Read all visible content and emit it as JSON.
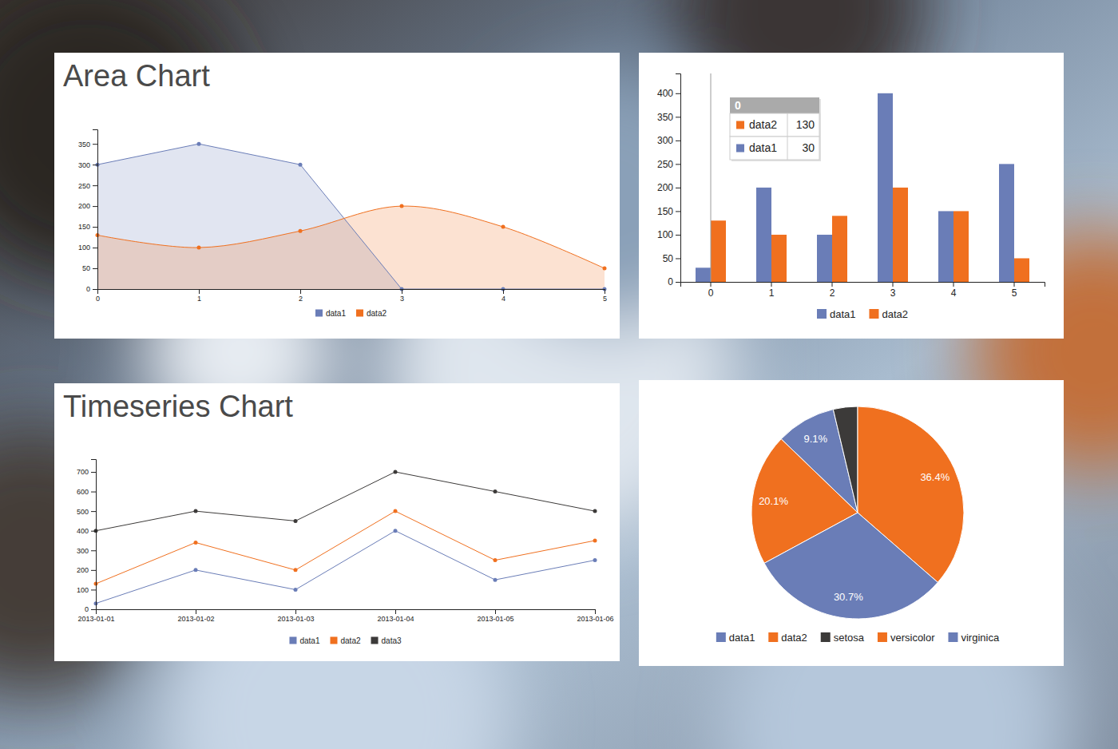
{
  "chart_data": [
    {
      "type": "area",
      "title": "Area Chart",
      "x": [
        0,
        1,
        2,
        3,
        4,
        5
      ],
      "xlim": [
        0,
        5
      ],
      "xticks": [
        0,
        1,
        2,
        3,
        4,
        5
      ],
      "ylim": [
        0,
        385
      ],
      "yticks": [
        0,
        50,
        100,
        150,
        200,
        250,
        300,
        350
      ],
      "legend": "bottom",
      "series": [
        {
          "name": "data1",
          "type": "area",
          "color": "#6a7db7",
          "marker": "circle",
          "values": [
            300,
            350,
            300,
            0,
            0,
            0
          ]
        },
        {
          "name": "data2",
          "type": "area-spline",
          "color": "#f0701f",
          "marker": "circle",
          "values": [
            130,
            100,
            140,
            200,
            150,
            50
          ]
        }
      ]
    },
    {
      "type": "bar",
      "categories": [
        "0",
        "1",
        "2",
        "3",
        "4",
        "5"
      ],
      "ylim": [
        0,
        442
      ],
      "yticks": [
        0,
        50,
        100,
        150,
        200,
        250,
        300,
        350,
        400
      ],
      "legend": "bottom",
      "series": [
        {
          "name": "data1",
          "color": "#6a7db7",
          "values": [
            30,
            200,
            100,
            400,
            150,
            250
          ]
        },
        {
          "name": "data2",
          "color": "#f0701f",
          "values": [
            130,
            100,
            140,
            200,
            150,
            50
          ]
        }
      ]
    },
    {
      "type": "line",
      "title": "Timeseries Chart",
      "x": [
        "2013-01-01",
        "2013-01-02",
        "2013-01-03",
        "2013-01-04",
        "2013-01-05",
        "2013-01-06"
      ],
      "xlim": [
        "2013-01-01",
        "2013-01-06"
      ],
      "xticks": [
        "2013-01-01",
        "2013-01-02",
        "2013-01-03",
        "2013-01-04",
        "2013-01-05",
        "2013-01-06"
      ],
      "ylim": [
        0,
        765
      ],
      "yticks": [
        0,
        100,
        200,
        300,
        400,
        500,
        600,
        700
      ],
      "legend": "bottom",
      "series": [
        {
          "name": "data1",
          "color": "#6a7db7",
          "marker": "circle",
          "values": [
            30,
            200,
            100,
            400,
            150,
            250
          ]
        },
        {
          "name": "data2",
          "color": "#f0701f",
          "marker": "circle",
          "values": [
            130,
            340,
            200,
            500,
            250,
            350
          ]
        },
        {
          "name": "data3",
          "color": "#3c3a39",
          "marker": "circle",
          "values": [
            400,
            500,
            450,
            700,
            600,
            500
          ]
        }
      ]
    },
    {
      "type": "pie",
      "categories": [
        "data1",
        "data2",
        "setosa",
        "versicolor",
        "virginica"
      ],
      "values": [
        9.1,
        20.1,
        3.7,
        36.4,
        30.7
      ],
      "value_labels": [
        "9.1%",
        "20.1%",
        null,
        "36.4%",
        "30.7%"
      ],
      "colors": [
        "#6a7db7",
        "#f0701f",
        "#3c3a39",
        "#f0701f",
        "#6a7db7"
      ],
      "data_labels": true,
      "legend": "bottom"
    }
  ]
}
